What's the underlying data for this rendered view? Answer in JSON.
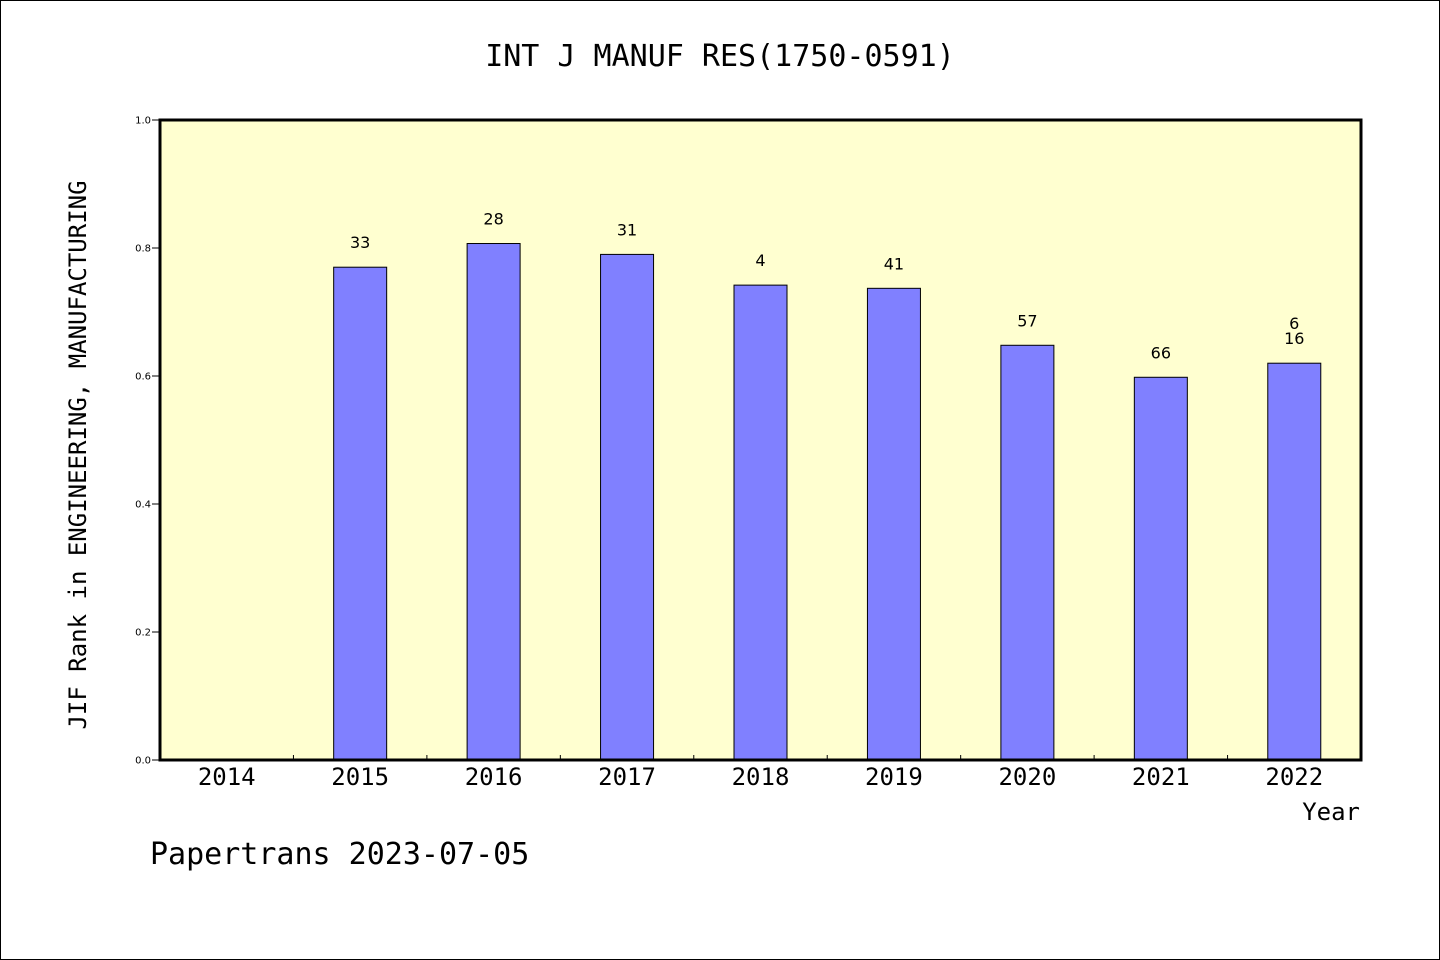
{
  "chart_data": {
    "type": "bar",
    "title": "INT J MANUF RES(1750-0591)",
    "ylabel": "JIF Rank in ENGINEERING, MANUFACTURING",
    "xlabel": "Year",
    "ylim": [
      0,
      1.0
    ],
    "yticks": [
      "0.0",
      "0.2",
      "0.4",
      "0.6",
      "0.8",
      "1.0"
    ],
    "categories": [
      "2014",
      "2015",
      "2016",
      "2017",
      "2018",
      "2019",
      "2020",
      "2021",
      "2022"
    ],
    "values": [
      null,
      0.77,
      0.807,
      0.79,
      0.742,
      0.737,
      0.648,
      0.598,
      0.62
    ],
    "labels": [
      "",
      "33",
      "28",
      "31",
      "4",
      "41",
      "57",
      "66",
      "16"
    ],
    "extra_labels": [
      "",
      "",
      "",
      "",
      "",
      "",
      "",
      "",
      "6"
    ],
    "bar_color": "#8080ff",
    "plot_background": "#ffffd0",
    "grid": false
  },
  "footer": "Papertrans 2023-07-05"
}
